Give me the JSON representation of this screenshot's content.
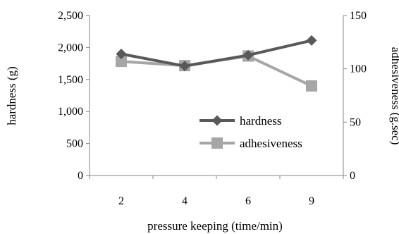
{
  "chart_data": {
    "type": "line",
    "xlabel": "pressure keeping (time/min)",
    "ylabel": "hardness (g)",
    "y2label": "adhesiveness (g.sec)",
    "categories": [
      "2",
      "4",
      "6",
      "9"
    ],
    "ylim": [
      0,
      2500
    ],
    "y_ticks": [
      "0",
      "500",
      "1,000",
      "1,500",
      "2,000",
      "2,500"
    ],
    "y2lim": [
      0,
      150
    ],
    "y2_ticks": [
      "0",
      "50",
      "100",
      "150"
    ],
    "grid": false,
    "legend_position": "center-right",
    "series": [
      {
        "name": "hardness",
        "axis": "left",
        "marker": "diamond",
        "color": "#595959",
        "values": [
          1900,
          1710,
          1880,
          2110
        ]
      },
      {
        "name": "adhesiveness",
        "axis": "right",
        "marker": "square",
        "color": "#a6a6a6",
        "values": [
          107,
          103,
          112,
          84
        ]
      }
    ]
  }
}
